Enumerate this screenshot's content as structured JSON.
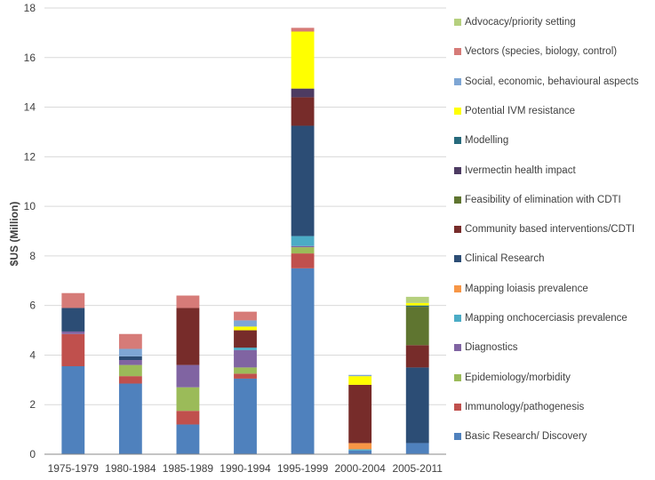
{
  "chart_data": {
    "type": "bar",
    "stacked": true,
    "ylabel": "$US (Million)",
    "xlabel": "",
    "ylim": [
      0,
      18
    ],
    "yticks": [
      0,
      2,
      4,
      6,
      8,
      10,
      12,
      14,
      16,
      18
    ],
    "grid": true,
    "legend_position": "right",
    "categories": [
      "1975-1979",
      "1980-1984",
      "1985-1989",
      "1990-1994",
      "1995-1999",
      "2000-2004",
      "2005-2011"
    ],
    "series": [
      {
        "name": "Basic Research/ Discovery",
        "color": "#4F81BD",
        "values": [
          3.55,
          2.85,
          1.2,
          3.05,
          7.5,
          0.15,
          0.45
        ]
      },
      {
        "name": "Immunology/pathogenesis",
        "color": "#C0504D",
        "values": [
          1.3,
          0.3,
          0.55,
          0.2,
          0.6,
          0.0,
          0.0
        ]
      },
      {
        "name": "Epidemiology/morbidity",
        "color": "#9BBB59",
        "values": [
          0.0,
          0.45,
          0.95,
          0.25,
          0.25,
          0.0,
          0.0
        ]
      },
      {
        "name": "Diagnostics",
        "color": "#8064A2",
        "values": [
          0.1,
          0.2,
          0.9,
          0.7,
          0.05,
          0.0,
          0.0
        ]
      },
      {
        "name": "Mapping onchocerciasis prevalence",
        "color": "#4BACC6",
        "values": [
          0.0,
          0.0,
          0.0,
          0.1,
          0.4,
          0.05,
          0.0
        ]
      },
      {
        "name": "Mapping loiasis prevalence",
        "color": "#F79646",
        "values": [
          0.0,
          0.0,
          0.0,
          0.0,
          0.0,
          0.25,
          0.0
        ]
      },
      {
        "name": "Clinical Research",
        "color": "#2C4D75",
        "values": [
          0.95,
          0.15,
          0.0,
          0.0,
          4.45,
          0.0,
          3.05
        ]
      },
      {
        "name": "Community based interventions/CDTI",
        "color": "#772C2A",
        "values": [
          0.0,
          0.0,
          2.3,
          0.7,
          1.15,
          2.35,
          0.9
        ]
      },
      {
        "name": "Feasibility of elimination with CDTI",
        "color": "#5F7530",
        "values": [
          0.0,
          0.0,
          0.0,
          0.0,
          0.0,
          0.0,
          1.55
        ]
      },
      {
        "name": "Ivermectin health impact",
        "color": "#4D3B62",
        "values": [
          0.0,
          0.0,
          0.0,
          0.0,
          0.35,
          0.0,
          0.0
        ]
      },
      {
        "name": "Modelling",
        "color": "#276A7C",
        "values": [
          0.0,
          0.0,
          0.0,
          0.0,
          0.0,
          0.0,
          0.05
        ]
      },
      {
        "name": "Potential IVM resistance",
        "color": "#FFFF00",
        "values": [
          0.0,
          0.0,
          0.0,
          0.15,
          2.3,
          0.35,
          0.1
        ]
      },
      {
        "name": "Social, economic, behavioural aspects",
        "color": "#7EA6D4",
        "values": [
          0.0,
          0.3,
          0.0,
          0.25,
          0.0,
          0.05,
          0.0
        ]
      },
      {
        "name": "Vectors (species, biology, control)",
        "color": "#D67B78",
        "values": [
          0.6,
          0.6,
          0.5,
          0.35,
          0.15,
          0.0,
          0.0
        ]
      },
      {
        "name": "Advocacy/priority setting",
        "color": "#B5D07E",
        "values": [
          0.0,
          0.0,
          0.0,
          0.0,
          0.0,
          0.0,
          0.25
        ]
      }
    ]
  }
}
